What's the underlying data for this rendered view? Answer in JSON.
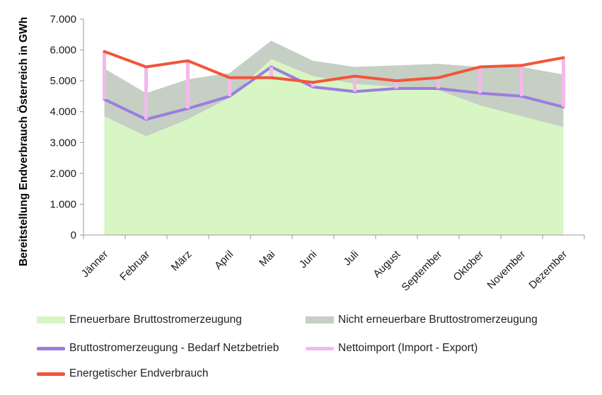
{
  "chart_data": {
    "type": "area",
    "xlabel": "",
    "ylabel": "Bereitstellung Endverbrauch Österreich in GWh",
    "ylim": [
      0,
      7000
    ],
    "yticks": [
      0,
      1000,
      2000,
      3000,
      4000,
      5000,
      6000,
      7000
    ],
    "ytick_labels": [
      "0",
      "1.000",
      "2.000",
      "3.000",
      "4.000",
      "5.000",
      "6.000",
      "7.000"
    ],
    "categories": [
      "Jänner",
      "Februar",
      "März",
      "April",
      "Mai",
      "Juni",
      "Juli",
      "August",
      "September",
      "Oktober",
      "November",
      "Dezember"
    ],
    "grid": false,
    "legend_position": "bottom",
    "series": [
      {
        "name": "Erneuerbare Bruttostromerzeugung",
        "kind": "area",
        "color": "#d8f5c4",
        "values": [
          3850,
          3200,
          3750,
          4450,
          5700,
          5150,
          4900,
          4800,
          4700,
          4200,
          3850,
          3500
        ]
      },
      {
        "name": "Nicht erneuerbare Bruttostromerzeugung",
        "kind": "stacked-area",
        "color": "#c5cfc4",
        "values": [
          1550,
          1400,
          1300,
          800,
          600,
          500,
          550,
          700,
          850,
          1250,
          1600,
          1700
        ]
      },
      {
        "name": "Bruttostromerzeugung - Bedarf Netzbetrieb",
        "kind": "line",
        "color": "#9b7de0",
        "values": [
          4400,
          3750,
          4100,
          4500,
          5450,
          4800,
          4650,
          4750,
          4750,
          4600,
          4500,
          4150
        ]
      },
      {
        "name": "Nettoimport (Import - Export)",
        "kind": "range-bar",
        "color": "#f4b8ee",
        "values": [
          1550,
          1700,
          1550,
          600,
          -350,
          150,
          500,
          250,
          350,
          850,
          1000,
          1600
        ]
      },
      {
        "name": "Energetischer Endverbrauch",
        "kind": "line",
        "color": "#f2553a",
        "values": [
          5950,
          5450,
          5650,
          5100,
          5100,
          4950,
          5150,
          5000,
          5100,
          5450,
          5500,
          5750
        ]
      }
    ]
  },
  "legend": [
    {
      "label": "Erneuerbare Bruttostromerzeugung",
      "swatch": "area",
      "color": "#d8f5c4"
    },
    {
      "label": "Nicht erneuerbare Bruttostromerzeugung",
      "swatch": "area",
      "color": "#c5cfc4"
    },
    {
      "label": "Bruttostromerzeugung - Bedarf Netzbetrieb",
      "swatch": "line",
      "color": "#9b7de0"
    },
    {
      "label": "Nettoimport (Import - Export)",
      "swatch": "line",
      "color": "#f4b8ee"
    },
    {
      "label": "Energetischer Endverbrauch",
      "swatch": "line",
      "color": "#f2553a"
    }
  ]
}
